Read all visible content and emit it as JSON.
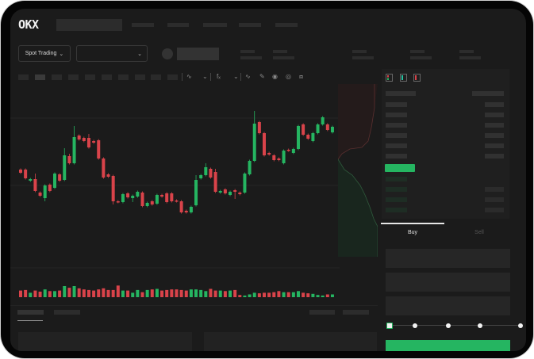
{
  "app": {
    "brand": "OKX"
  },
  "colors": {
    "up": "#25b561",
    "down": "#d9434a",
    "accent": "#25b561",
    "background": "#1b1b1b",
    "device": "#050505"
  },
  "toolbar": {
    "market_selector_label": "Spot Trading",
    "pair_selector_value": "",
    "chevron_icon": "chevron-down-icon"
  },
  "chart_tools": {
    "icons": [
      "candles-icon",
      "chevron-down-icon",
      "indicator-fx-icon",
      "chevron-down-icon",
      "line-icon",
      "pencil-icon",
      "camera-icon",
      "settings-circle-icon",
      "fullscreen-icon"
    ]
  },
  "orderbook": {
    "view_icons": [
      "orderbook-both-icon",
      "orderbook-bids-icon",
      "orderbook-asks-icon"
    ]
  },
  "trade_panel": {
    "tabs": [
      {
        "label": "Buy",
        "active": true
      },
      {
        "label": "Sell",
        "active": false
      }
    ],
    "slider_percent": 0,
    "slider_stops": [
      0,
      25,
      50,
      75,
      100
    ]
  },
  "chart_data": {
    "type": "candlestick",
    "title": "",
    "xlabel": "",
    "ylabel": "",
    "grid": true,
    "candles": [
      [
        97,
        93
      ],
      [
        97,
        86
      ],
      [
        83,
        85
      ],
      [
        85,
        70,
        92
      ],
      [
        68,
        64
      ],
      [
        61,
        77,
        null,
        57
      ],
      [
        78,
        70
      ],
      [
        74,
        92
      ],
      [
        91,
        83
      ],
      [
        84,
        115,
        124
      ],
      [
        114,
        105,
        117
      ],
      [
        105,
        138,
        152
      ],
      [
        140,
        135
      ],
      [
        137,
        133
      ],
      [
        137,
        125,
        142
      ],
      [
        133,
        131
      ],
      [
        134,
        111
      ],
      [
        111,
        87
      ],
      [
        91,
        88
      ],
      [
        89,
        57,
        null,
        53
      ],
      [
        57,
        56
      ],
      [
        56,
        66
      ],
      [
        67,
        62
      ],
      [
        61,
        64,
        null,
        56
      ],
      [
        63,
        69
      ],
      [
        68,
        51
      ],
      [
        51,
        55
      ],
      [
        57,
        53
      ],
      [
        54,
        65
      ],
      [
        65,
        63
      ],
      [
        67,
        56
      ],
      [
        67,
        57
      ],
      [
        58,
        57
      ],
      [
        57,
        43
      ],
      [
        45,
        43
      ],
      [
        43,
        50
      ],
      [
        52,
        84,
        90
      ],
      [
        86,
        90
      ],
      [
        90,
        100,
        105
      ],
      [
        98,
        87
      ],
      [
        94,
        69,
        98
      ],
      [
        68,
        70
      ],
      [
        72,
        67
      ],
      [
        65,
        69
      ],
      [
        71,
        69,
        null,
        60
      ],
      [
        68,
        66
      ],
      [
        68,
        92
      ],
      [
        91,
        108
      ],
      [
        108,
        155,
        171
      ],
      [
        157,
        143
      ],
      [
        143,
        115
      ],
      [
        118,
        116
      ],
      [
        115,
        109
      ],
      [
        111,
        109
      ],
      [
        105,
        121
      ],
      [
        122,
        121
      ],
      [
        118,
        123
      ],
      [
        123,
        152
      ],
      [
        154,
        141
      ],
      [
        141,
        136
      ],
      [
        133,
        143
      ],
      [
        143,
        154
      ],
      [
        154,
        163
      ],
      [
        154,
        147
      ],
      [
        144,
        151
      ]
    ],
    "candle_format": [
      "open",
      "close",
      "high",
      "low"
    ],
    "volumes": [
      12,
      13,
      8,
      12,
      10,
      14,
      11,
      11,
      12,
      20,
      17,
      20,
      16,
      14,
      13,
      12,
      14,
      16,
      13,
      13,
      21,
      12,
      12,
      8,
      13,
      9,
      13,
      14,
      15,
      12,
      13,
      14,
      14,
      13,
      12,
      14,
      14,
      13,
      11,
      15,
      12,
      12,
      11,
      12,
      13,
      4,
      3,
      5,
      8,
      7,
      8,
      8,
      9,
      11,
      9,
      9,
      9,
      11,
      8,
      7,
      6,
      4,
      3,
      5,
      5
    ]
  }
}
